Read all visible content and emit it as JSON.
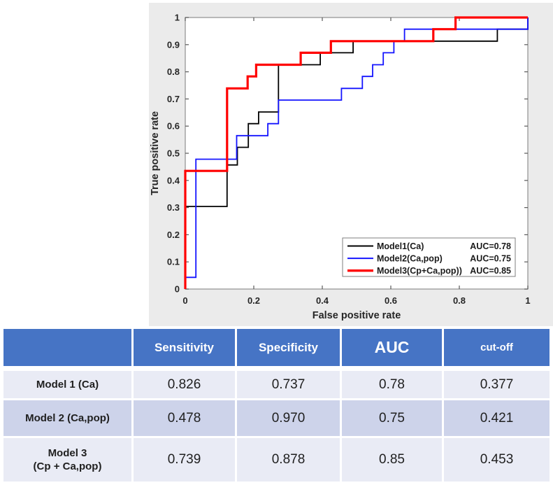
{
  "chart_data": {
    "type": "line",
    "subtype": "roc-step-curves",
    "xlabel": "False positive rate",
    "ylabel": "True positive rate",
    "xlim": [
      0,
      1
    ],
    "ylim": [
      0,
      1
    ],
    "xtick_labels": [
      "0",
      "0.2",
      "0.4",
      "0.6",
      "0.8",
      "1"
    ],
    "xticks": [
      0,
      0.2,
      0.4,
      0.6,
      0.8,
      1
    ],
    "ytick_labels": [
      "0",
      "0.1",
      "0.2",
      "0.3",
      "0.4",
      "0.5",
      "0.6",
      "0.7",
      "0.8",
      "0.9",
      "1"
    ],
    "yticks": [
      0,
      0.1,
      0.2,
      0.3,
      0.4,
      0.5,
      0.6,
      0.7,
      0.8,
      0.9,
      1
    ],
    "grid": false,
    "figure_bg": "#EBEBEB",
    "plot_bg": "#FFFFFF",
    "axes_edge_color": "#8F8F8F",
    "text_color": "#262626",
    "legend": {
      "position": "south-east",
      "border_color": "#7F7F7F",
      "bg": "#FFFFFF"
    },
    "series": [
      {
        "name": "Model1(Ca)",
        "auc_label": "AUC=0.78",
        "color": "#000000",
        "line_width": 1.8,
        "points": [
          [
            0,
            0
          ],
          [
            0,
            0.304
          ],
          [
            0.122,
            0.304
          ],
          [
            0.122,
            0.457
          ],
          [
            0.152,
            0.457
          ],
          [
            0.152,
            0.522
          ],
          [
            0.184,
            0.522
          ],
          [
            0.184,
            0.609
          ],
          [
            0.214,
            0.609
          ],
          [
            0.214,
            0.652
          ],
          [
            0.272,
            0.652
          ],
          [
            0.272,
            0.826
          ],
          [
            0.394,
            0.826
          ],
          [
            0.394,
            0.87
          ],
          [
            0.49,
            0.87
          ],
          [
            0.49,
            0.913
          ],
          [
            0.911,
            0.913
          ],
          [
            0.911,
            0.957
          ],
          [
            1,
            0.957
          ],
          [
            1,
            1
          ]
        ]
      },
      {
        "name": "Model2(Ca,pop)",
        "auc_label": "AUC=0.75",
        "color": "#1414FF",
        "line_width": 1.8,
        "points": [
          [
            0,
            0
          ],
          [
            0,
            0.043
          ],
          [
            0.031,
            0.043
          ],
          [
            0.031,
            0.478
          ],
          [
            0.15,
            0.478
          ],
          [
            0.15,
            0.565
          ],
          [
            0.241,
            0.565
          ],
          [
            0.241,
            0.609
          ],
          [
            0.272,
            0.609
          ],
          [
            0.272,
            0.696
          ],
          [
            0.456,
            0.696
          ],
          [
            0.456,
            0.739
          ],
          [
            0.517,
            0.739
          ],
          [
            0.517,
            0.783
          ],
          [
            0.547,
            0.783
          ],
          [
            0.547,
            0.826
          ],
          [
            0.578,
            0.826
          ],
          [
            0.578,
            0.87
          ],
          [
            0.609,
            0.87
          ],
          [
            0.609,
            0.913
          ],
          [
            0.64,
            0.913
          ],
          [
            0.64,
            0.957
          ],
          [
            1,
            0.957
          ],
          [
            1,
            1
          ]
        ]
      },
      {
        "name": "Model3(Cp+Ca,pop))",
        "auc_label": "AUC=0.85",
        "color": "#FF0000",
        "line_width": 3.2,
        "points": [
          [
            0,
            0
          ],
          [
            0,
            0.435
          ],
          [
            0.122,
            0.435
          ],
          [
            0.122,
            0.739
          ],
          [
            0.182,
            0.739
          ],
          [
            0.182,
            0.783
          ],
          [
            0.207,
            0.783
          ],
          [
            0.207,
            0.826
          ],
          [
            0.337,
            0.826
          ],
          [
            0.337,
            0.87
          ],
          [
            0.425,
            0.87
          ],
          [
            0.425,
            0.913
          ],
          [
            0.724,
            0.913
          ],
          [
            0.724,
            0.957
          ],
          [
            0.789,
            0.957
          ],
          [
            0.789,
            1
          ],
          [
            1,
            1
          ]
        ]
      }
    ]
  },
  "table": {
    "header": [
      "",
      "Sensitivity",
      "Specificity",
      "AUC",
      "cut-off"
    ],
    "rows": [
      {
        "label": "Model 1 (Ca)",
        "values": [
          "0.826",
          "0.737",
          "0.78",
          "0.377"
        ]
      },
      {
        "label": "Model 2 (Ca,pop)",
        "values": [
          "0.478",
          "0.970",
          "0.75",
          "0.421"
        ]
      },
      {
        "label": "Model 3\n(Cp + Ca,pop)",
        "values": [
          "0.739",
          "0.878",
          "0.85",
          "0.453"
        ]
      }
    ],
    "colors": {
      "header_bg": "#4674C5",
      "header_text": "#FFFFFF",
      "row_light": "#E9EBF5",
      "row_dark": "#CDD3EA"
    }
  }
}
